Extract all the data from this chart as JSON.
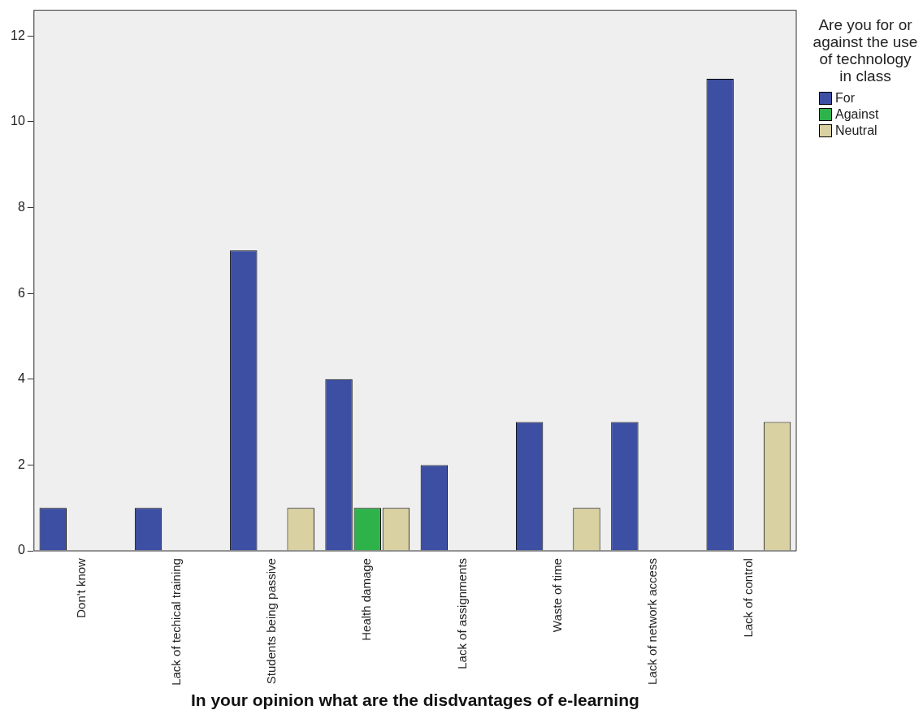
{
  "chart_data": {
    "type": "bar",
    "xlabel": "In your opinion what are the disdvantages of e-learning",
    "legend_title": "Are you for or against the use of technology in class",
    "legend": "right",
    "grid": false,
    "categories": [
      "Don't know",
      "Lack of techical training",
      "Students being passive",
      "Health damage",
      "Lack of assignments",
      "Waste of time",
      "Lack of network access",
      "Lack of control"
    ],
    "series": [
      {
        "name": "For",
        "color": "#3c4fa3",
        "values": [
          1,
          1,
          7,
          4,
          2,
          3,
          3,
          11
        ]
      },
      {
        "name": "Against",
        "color": "#2db34a",
        "values": [
          null,
          null,
          null,
          1,
          null,
          null,
          null,
          null
        ]
      },
      {
        "name": "Neutral",
        "color": "#d9d1a1",
        "values": [
          null,
          null,
          1,
          1,
          null,
          1,
          null,
          3
        ]
      }
    ],
    "ylim": [
      0,
      12.6
    ],
    "yticks": [
      0,
      2,
      4,
      6,
      8,
      10,
      12
    ]
  }
}
